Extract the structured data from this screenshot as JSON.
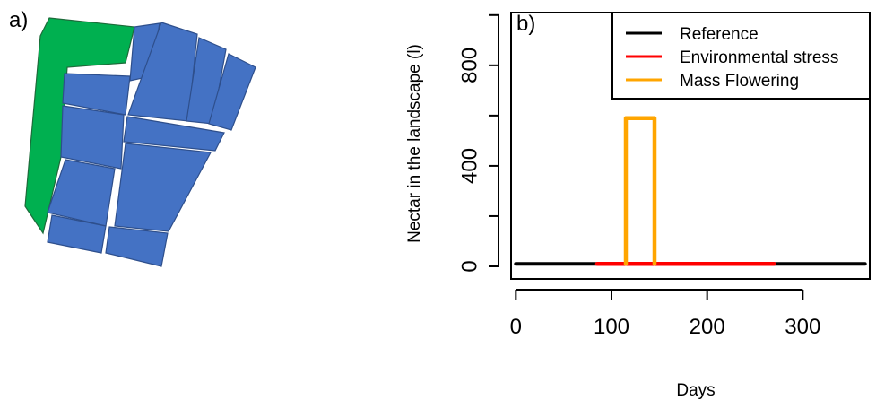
{
  "panel_a": {
    "label": "a)",
    "colors": {
      "field": "#4472c4",
      "field_stroke": "#2e4f8c",
      "green_patch": "#00b050",
      "green_stroke": "#1d6b3a"
    }
  },
  "chart_data": {
    "type": "line",
    "panel_label": "b)",
    "xlabel": "Days",
    "ylabel": "Nectar in the landscape (l)",
    "xlim": [
      -5,
      370
    ],
    "ylim": [
      -50,
      1010
    ],
    "xticks": [
      0,
      100,
      200,
      300
    ],
    "yticks": [
      0,
      400,
      800
    ],
    "grid": false,
    "legend_position": "top-right",
    "series": [
      {
        "name": "Reference",
        "color": "#000000",
        "x": [
          0,
          365
        ],
        "y": [
          10,
          10
        ]
      },
      {
        "name": "Environmental stress",
        "color": "#ff0000",
        "x": [
          85,
          270
        ],
        "y": [
          10,
          10
        ]
      },
      {
        "name": "Mass Flowering",
        "color": "#ffa500",
        "x": [
          115,
          115,
          145,
          145
        ],
        "y": [
          10,
          590,
          590,
          10
        ]
      }
    ]
  }
}
